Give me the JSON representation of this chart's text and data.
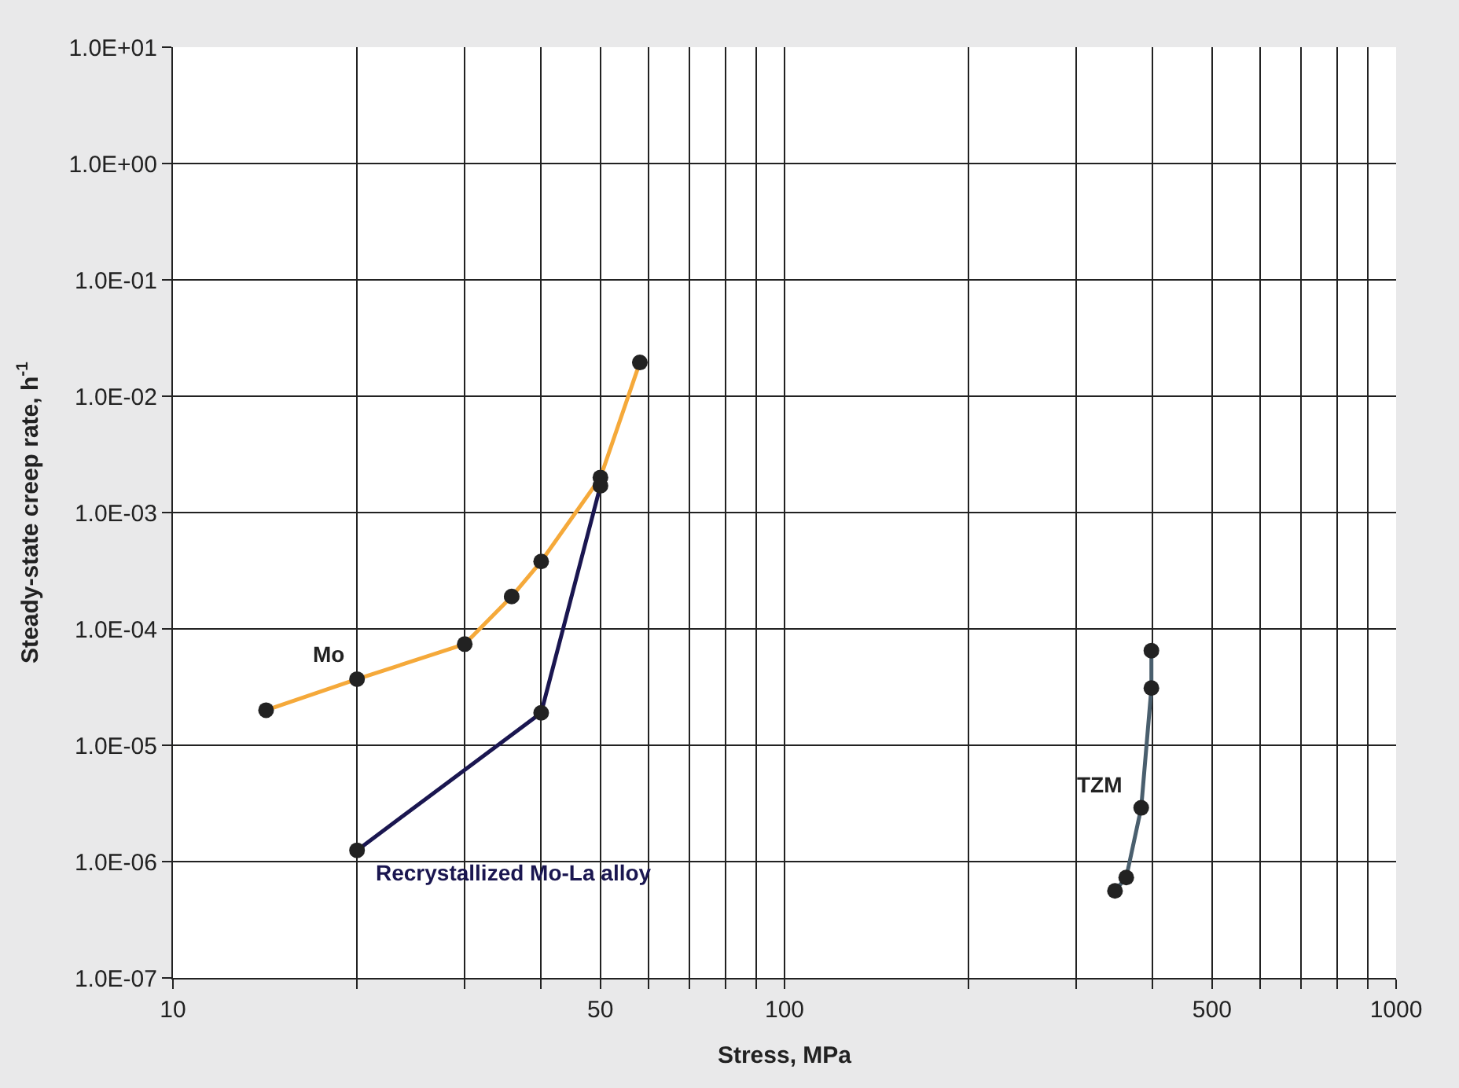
{
  "chart_data": {
    "type": "line",
    "xlabel": "Stress, MPa",
    "ylabel": "Steady-state creep rate, h$^{-1}$",
    "log": "xy",
    "grid": true,
    "legend": false,
    "marker": "circle",
    "line_style": "solid",
    "xlim": [
      10,
      1000
    ],
    "ylim": [
      1e-07,
      10
    ],
    "xticks": [
      10,
      {
        "value": 20,
        "label": null
      },
      {
        "value": 30,
        "label": null
      },
      {
        "value": 40,
        "label": null
      },
      50,
      {
        "value": 60,
        "label": null
      },
      {
        "value": 70,
        "label": null
      },
      {
        "value": 80,
        "label": null
      },
      {
        "value": 90,
        "label": null
      },
      100,
      {
        "value": 200,
        "label": null
      },
      {
        "value": 300,
        "label": null
      },
      {
        "value": 400,
        "label": null
      },
      500,
      {
        "value": 600,
        "label": null
      },
      {
        "value": 700,
        "label": null
      },
      {
        "value": 800,
        "label": null
      },
      {
        "value": 900,
        "label": null
      },
      1000
    ],
    "yticks": [
      {
        "value": 1e-07,
        "label": "1.0E-07"
      },
      {
        "value": 1e-06,
        "label": "1.0E-06"
      },
      {
        "value": 1e-05,
        "label": "1.0E-05"
      },
      {
        "value": 0.0001,
        "label": "1.0E-04"
      },
      {
        "value": 0.001,
        "label": "1.0E-03"
      },
      {
        "value": 0.01,
        "label": "1.0E-02"
      },
      {
        "value": 0.1,
        "label": "1.0E-01"
      },
      {
        "value": 1,
        "label": "1.0E+00"
      },
      {
        "value": 10,
        "label": "1.0E+01"
      }
    ],
    "series": [
      {
        "name": "Mo",
        "color": "#f5a93a",
        "x": [
          14.2,
          20,
          30,
          35.8,
          40,
          50,
          58
        ],
        "values": [
          2e-05,
          3.7e-05,
          7.4e-05,
          0.00019,
          0.00038,
          0.002,
          0.0195
        ]
      },
      {
        "name": "Recrystallized Mo-La alloy",
        "color": "#1a1650",
        "x": [
          20,
          40,
          50
        ],
        "values": [
          1.25e-06,
          1.9e-05,
          0.0017
        ]
      },
      {
        "name": "TZM",
        "color": "#4a5f6e",
        "x": [
          347,
          362,
          383,
          398,
          398
        ],
        "values": [
          5.6e-07,
          7.3e-07,
          2.9e-06,
          3.1e-05,
          6.5e-05
        ]
      }
    ]
  }
}
